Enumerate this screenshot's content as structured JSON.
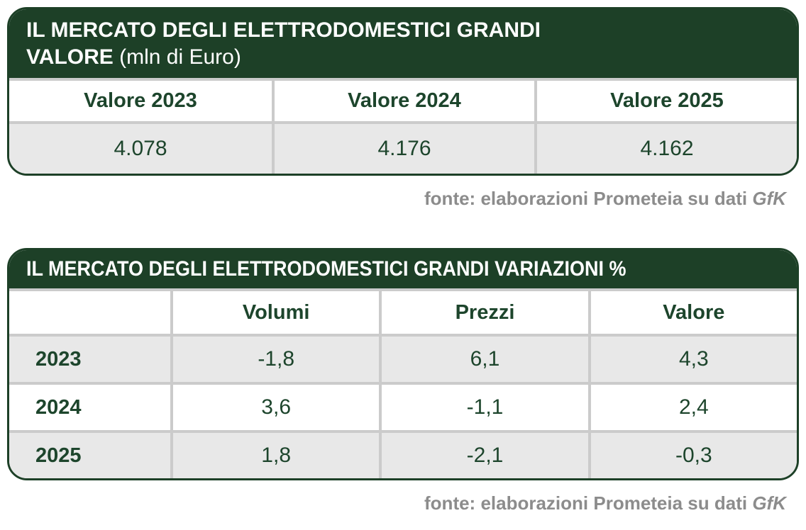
{
  "colors": {
    "header_green": "#1d4027",
    "text_green": "#1d452c",
    "row_gray": "#e8e8e8",
    "divider_gray": "#cbcbcb",
    "source_gray": "#8c8c8c"
  },
  "table1": {
    "title_line1": "IL MERCATO DEGLI ELETTRODOMESTICI GRANDI",
    "title_line2_bold": "VALORE",
    "title_line2_normal": " (mln di Euro)",
    "headers": [
      "Valore 2023",
      "Valore 2024",
      "Valore 2025"
    ],
    "values": [
      "4.078",
      "4.176",
      "4.162"
    ]
  },
  "table2": {
    "title": "IL MERCATO DEGLI ELETTRODOMESTICI GRANDI VARIAZIONI %",
    "headers": [
      "Volumi",
      "Prezzi",
      "Valore"
    ],
    "rows": [
      {
        "label": "2023",
        "values": [
          "-1,8",
          "6,1",
          "4,3"
        ]
      },
      {
        "label": "2024",
        "values": [
          "3,6",
          "-1,1",
          "2,4"
        ]
      },
      {
        "label": "2025",
        "values": [
          "1,8",
          "-2,1",
          "-0,3"
        ]
      }
    ]
  },
  "source": {
    "prefix": "fonte: elaborazioni Prometeia su dati ",
    "italic": "GfK"
  },
  "chart_data": [
    {
      "type": "table",
      "title": "IL MERCATO DEGLI ELETTRODOMESTICI GRANDI VALORE (mln di Euro)",
      "columns": [
        "Valore 2023",
        "Valore 2024",
        "Valore 2025"
      ],
      "rows": [
        [
          "4.078",
          "4.176",
          "4.162"
        ]
      ],
      "source": "fonte: elaborazioni Prometeia su dati GfK"
    },
    {
      "type": "table",
      "title": "IL MERCATO DEGLI ELETTRODOMESTICI GRANDI VARIAZIONI %",
      "columns": [
        "",
        "Volumi",
        "Prezzi",
        "Valore"
      ],
      "rows": [
        [
          "2023",
          "-1,8",
          "6,1",
          "4,3"
        ],
        [
          "2024",
          "3,6",
          "-1,1",
          "2,4"
        ],
        [
          "2025",
          "1,8",
          "-2,1",
          "-0,3"
        ]
      ],
      "source": "fonte: elaborazioni Prometeia su dati GfK"
    }
  ]
}
